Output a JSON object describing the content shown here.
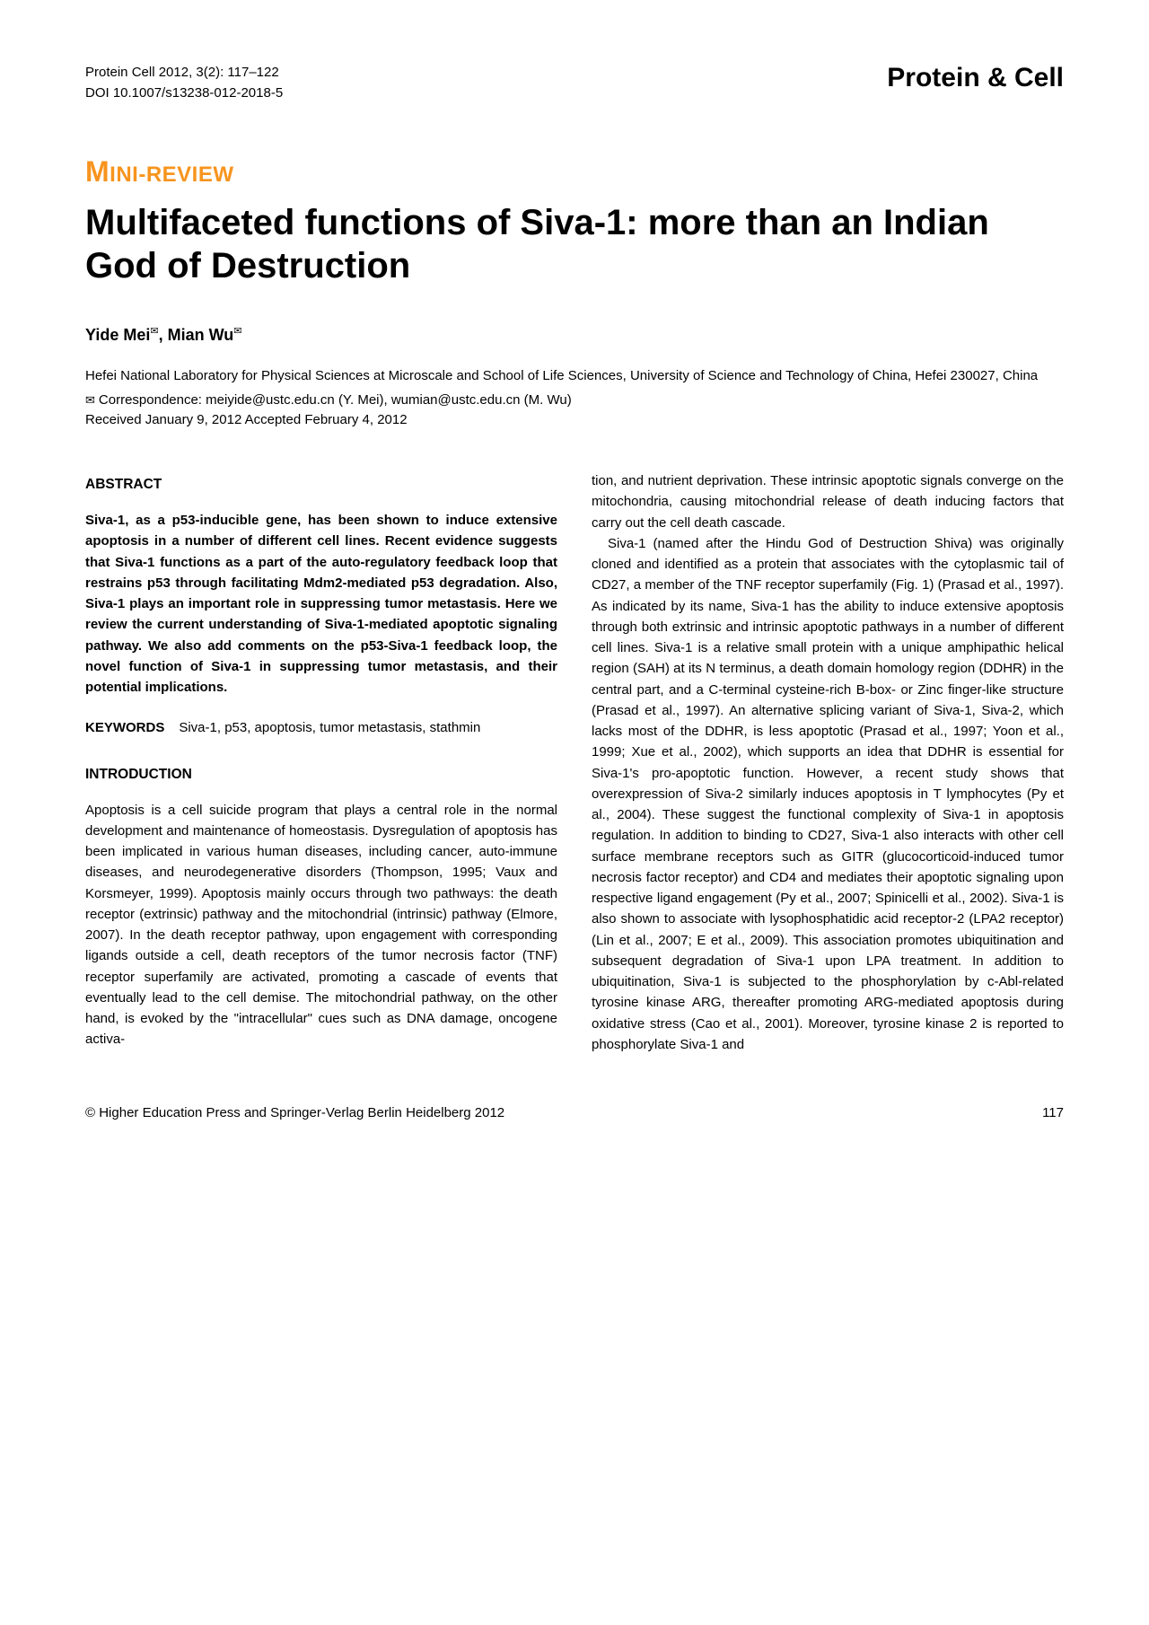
{
  "header": {
    "citation_line1": "Protein Cell 2012, 3(2): 117–122",
    "citation_line2": "DOI 10.1007/s13238-012-2018-5",
    "journal": "Protein & Cell"
  },
  "article": {
    "section_label_cap": "M",
    "section_label_rest": "INI-REVIEW",
    "title": "Multifaceted functions of Siva-1: more than an Indian God of Destruction",
    "authors": "Yide Mei✉, Mian Wu✉",
    "affiliation": "Hefei National Laboratory for Physical Sciences at Microscale and School of Life Sciences, University of Science and Technology of China, Hefei 230027, China",
    "correspondence": "Correspondence: meiyide@ustc.edu.cn (Y. Mei), wumian@ustc.edu.cn (M. Wu)",
    "dates": "Received January 9, 2012    Accepted February 4, 2012"
  },
  "abstract": {
    "heading": "ABSTRACT",
    "text": "Siva-1, as a p53-inducible gene, has been shown to induce extensive apoptosis in a number of different cell lines. Recent evidence suggests that Siva-1 functions as a part of the auto-regulatory feedback loop that restrains p53 through facilitating Mdm2-mediated p53 degradation. Also, Siva-1 plays an important role in suppressing tumor metastasis. Here we review the current understanding of Siva-1-mediated apoptotic signaling pathway. We also add comments on the p53-Siva-1 feedback loop, the novel function of Siva-1 in suppressing tumor metastasis, and their potential implications."
  },
  "keywords": {
    "label": "KEYWORDS",
    "text": "Siva-1, p53, apoptosis, tumor metastasis, stathmin"
  },
  "introduction": {
    "heading": "INTRODUCTION",
    "para1": "Apoptosis is a cell suicide program that plays a central role in the normal development and maintenance of homeostasis. Dysregulation of apoptosis has been implicated in various human diseases, including cancer, auto-immune diseases, and neurodegenerative disorders (Thompson, 1995; Vaux and Korsmeyer, 1999). Apoptosis mainly occurs through two pathways: the death receptor (extrinsic) pathway and the mitochondrial (intrinsic) pathway (Elmore, 2007). In the death receptor pathway, upon engagement with corresponding ligands outside a cell, death receptors of the tumor necrosis factor (TNF) receptor superfamily are activated, promoting a cascade of events that eventually lead to the cell demise. The mitochondrial pathway, on the other hand, is evoked by the \"intracellular\" cues such as DNA damage, oncogene activa-",
    "para2_cont": "tion, and nutrient deprivation. These intrinsic apoptotic signals converge on the mitochondria, causing mitochondrial release of death inducing factors that carry out the cell death cascade.",
    "para3": "Siva-1 (named after the Hindu God of Destruction Shiva) was originally cloned and identified as a protein that associates with the cytoplasmic tail of CD27, a member of the TNF receptor superfamily (Fig. 1) (Prasad et al., 1997). As indicated by its name, Siva-1 has the ability to induce extensive apoptosis through both extrinsic and intrinsic apoptotic pathways in a number of different cell lines. Siva-1 is a relative small protein with a unique amphipathic helical region (SAH) at its N terminus, a death domain homology region (DDHR) in the central part, and a C-terminal cysteine-rich B-box- or Zinc finger-like structure (Prasad et al., 1997). An alternative splicing variant of Siva-1, Siva-2, which lacks most of the DDHR, is less apoptotic (Prasad et al., 1997; Yoon et al., 1999; Xue et al., 2002), which supports an idea that DDHR is essential for Siva-1's pro-apoptotic function. However, a recent study shows that overexpression of Siva-2 similarly induces apoptosis in T lymphocytes (Py et al., 2004). These suggest the functional complexity of Siva-1 in apoptosis regulation. In addition to binding to CD27, Siva-1 also interacts with other cell surface membrane receptors such as GITR (glucocorticoid-induced tumor necrosis factor receptor) and CD4 and mediates their apoptotic signaling upon respective ligand engagement (Py et al., 2007; Spinicelli et al., 2002). Siva-1 is also shown to associate with lysophosphatidic acid receptor-2 (LPA2 receptor) (Lin et al., 2007; E et al., 2009). This association promotes ubiquitination and subsequent degradation of Siva-1 upon LPA treatment. In addition to ubiquitination, Siva-1 is subjected to the phosphorylation by c-Abl-related tyrosine kinase ARG, thereafter promoting ARG-mediated apoptosis during oxidative stress (Cao et al., 2001). Moreover, tyrosine kinase 2 is reported to phosphorylate Siva-1 and"
  },
  "footer": {
    "copyright": "© Higher Education Press and Springer-Verlag Berlin Heidelberg 2012",
    "page": "117"
  },
  "colors": {
    "accent": "#f7941e",
    "text": "#000000",
    "background": "#ffffff"
  }
}
